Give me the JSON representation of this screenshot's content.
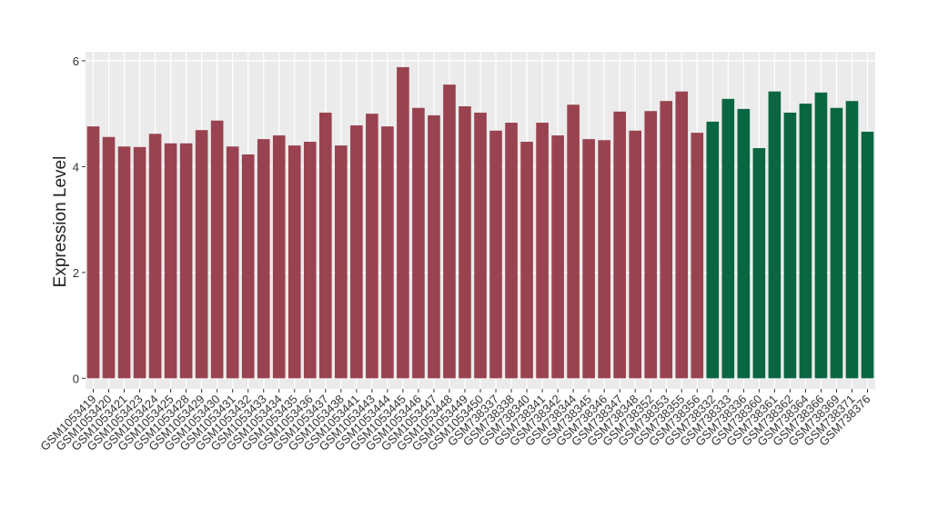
{
  "chart_data": {
    "type": "bar",
    "y_label": "Expression Level",
    "categories": [
      "GSM1053419",
      "GSM1053420",
      "GSM1053421",
      "GSM1053423",
      "GSM1053424",
      "GSM1053425",
      "GSM1053428",
      "GSM1053429",
      "GSM1053430",
      "GSM1053431",
      "GSM1053432",
      "GSM1053433",
      "GSM1053434",
      "GSM1053435",
      "GSM1053436",
      "GSM1053437",
      "GSM1053438",
      "GSM1053441",
      "GSM1053443",
      "GSM1053444",
      "GSM1053445",
      "GSM1053446",
      "GSM1053447",
      "GSM1053448",
      "GSM1053449",
      "GSM1053450",
      "GSM738337",
      "GSM738338",
      "GSM738340",
      "GSM738341",
      "GSM738342",
      "GSM738344",
      "GSM738345",
      "GSM738346",
      "GSM738347",
      "GSM738348",
      "GSM738352",
      "GSM738353",
      "GSM738355",
      "GSM738356",
      "GSM738332",
      "GSM738333",
      "GSM738336",
      "GSM738360",
      "GSM738361",
      "GSM738362",
      "GSM738364",
      "GSM738366",
      "GSM738369",
      "GSM738371",
      "GSM738376"
    ],
    "values": [
      4.76,
      4.56,
      4.38,
      4.37,
      4.62,
      4.44,
      4.44,
      4.69,
      4.87,
      4.38,
      4.23,
      4.52,
      4.59,
      4.4,
      4.47,
      5.02,
      4.4,
      4.78,
      5.0,
      4.76,
      5.88,
      5.11,
      4.97,
      5.55,
      5.14,
      5.02,
      4.68,
      4.83,
      4.47,
      4.83,
      4.59,
      5.17,
      4.52,
      4.5,
      5.04,
      4.68,
      5.05,
      5.24,
      5.42,
      4.64,
      4.85,
      5.28,
      5.09,
      4.35,
      5.42,
      5.02,
      5.19,
      5.4,
      5.11,
      5.24,
      4.66
    ],
    "colors": [
      "#9a4350",
      "#9a4350",
      "#9a4350",
      "#9a4350",
      "#9a4350",
      "#9a4350",
      "#9a4350",
      "#9a4350",
      "#9a4350",
      "#9a4350",
      "#9a4350",
      "#9a4350",
      "#9a4350",
      "#9a4350",
      "#9a4350",
      "#9a4350",
      "#9a4350",
      "#9a4350",
      "#9a4350",
      "#9a4350",
      "#9a4350",
      "#9a4350",
      "#9a4350",
      "#9a4350",
      "#9a4350",
      "#9a4350",
      "#9a4350",
      "#9a4350",
      "#9a4350",
      "#9a4350",
      "#9a4350",
      "#9a4350",
      "#9a4350",
      "#9a4350",
      "#9a4350",
      "#9a4350",
      "#9a4350",
      "#9a4350",
      "#9a4350",
      "#9a4350",
      "#0a6641",
      "#0a6641",
      "#0a6641",
      "#0a6641",
      "#0a6641",
      "#0a6641",
      "#0a6641",
      "#0a6641",
      "#0a6641",
      "#0a6641",
      "#0a6641"
    ],
    "ylim": [
      -0.2,
      6.17
    ],
    "yticks": [
      0,
      2,
      4,
      6
    ],
    "grid": true,
    "panel_color": "#ebebeb"
  }
}
